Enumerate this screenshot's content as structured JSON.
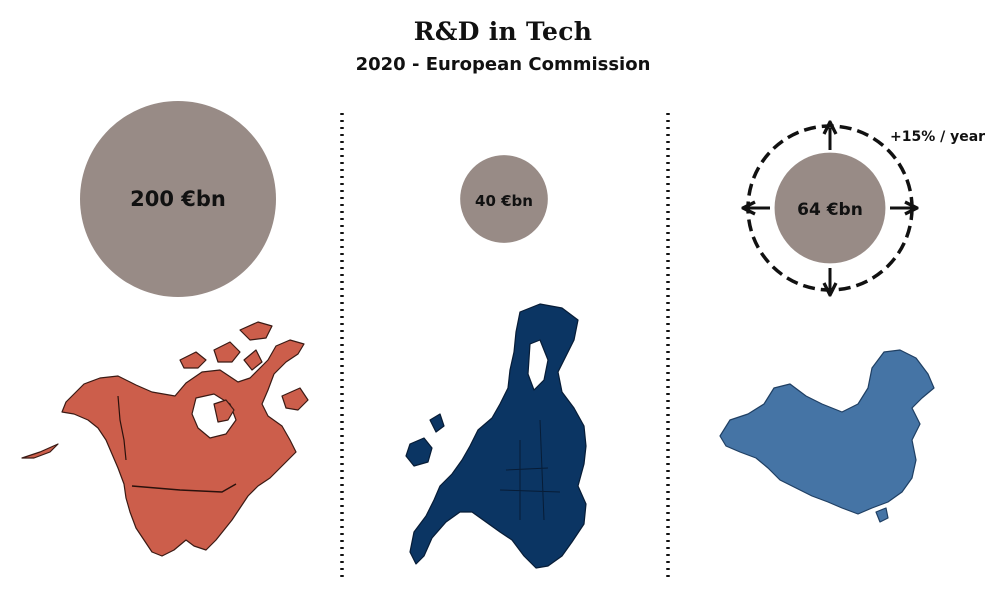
{
  "chart_data": {
    "type": "bubble",
    "title": "R&D in Tech",
    "subtitle": "2020 - European Commission",
    "unit": "€bn",
    "items": [
      {
        "region": "north-america",
        "value": 200,
        "label": "200 €bn",
        "color": "#cc5e4b"
      },
      {
        "region": "europe",
        "value": 40,
        "label": "40 €bn",
        "color": "#0b3563"
      },
      {
        "region": "china",
        "value": 64,
        "label": "64 €bn",
        "color": "#4574a5",
        "growth_label": "+15% / year"
      }
    ],
    "bubble_color": "#988b86"
  }
}
